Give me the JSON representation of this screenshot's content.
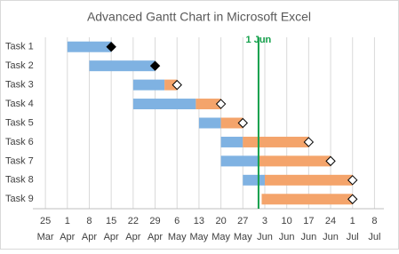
{
  "chart_data": {
    "type": "gantt",
    "title": "Advanced Gantt Chart in Microsoft Excel",
    "categories": [
      "Task 1",
      "Task 2",
      "Task 3",
      "Task 4",
      "Task 5",
      "Task 6",
      "Task 7",
      "Task 8",
      "Task 9"
    ],
    "series": [
      {
        "color": "#7fb2e2",
        "start": [
          "1 Apr",
          "8 Apr",
          "22 Apr",
          "22 Apr",
          "13 May",
          "20 May",
          "20 May",
          "27 May",
          null
        ],
        "end": [
          "15 Apr",
          "29 Apr",
          "2 May",
          "12 May",
          "20 May",
          "27 May",
          "1 Jun",
          "3 Jun",
          null
        ]
      },
      {
        "color": "#f4a46b",
        "start": [
          null,
          null,
          "2 May",
          "12 May",
          "20 May",
          "27 May",
          "1 Jun",
          "3 Jun",
          "2 Jun"
        ],
        "end": [
          null,
          null,
          "6 May",
          "20 May",
          "27 May",
          "17 Jun",
          "24 Jun",
          "1 Jul",
          "1 Jul"
        ]
      }
    ],
    "deadlines": {
      "values": [
        "15 Apr",
        "29 Apr",
        "6 May",
        "20 May",
        "27 May",
        "17 Jun",
        "24 Jun",
        "1 Jul",
        "1 Jul"
      ],
      "fills": [
        "#000000",
        "#000000",
        "#ffffff",
        "#ffffff",
        "#ffffff",
        "#ffffff",
        "#ffffff",
        "#ffffff",
        "#ffffff"
      ]
    },
    "today": {
      "x": "1 Jun",
      "color": "#14a04b"
    },
    "xlim": [
      "21 Mar",
      "11 Jul"
    ],
    "xticks": [
      "25 Mar",
      "1 Apr",
      "8 Apr",
      "15 Apr",
      "22 Apr",
      "29 Apr",
      "6 May",
      "13 May",
      "20 May",
      "27 May",
      "3 Jun",
      "10 Jun",
      "17 Jun",
      "24 Jun",
      "1 Jul",
      "8 Jul"
    ],
    "grid": true
  }
}
